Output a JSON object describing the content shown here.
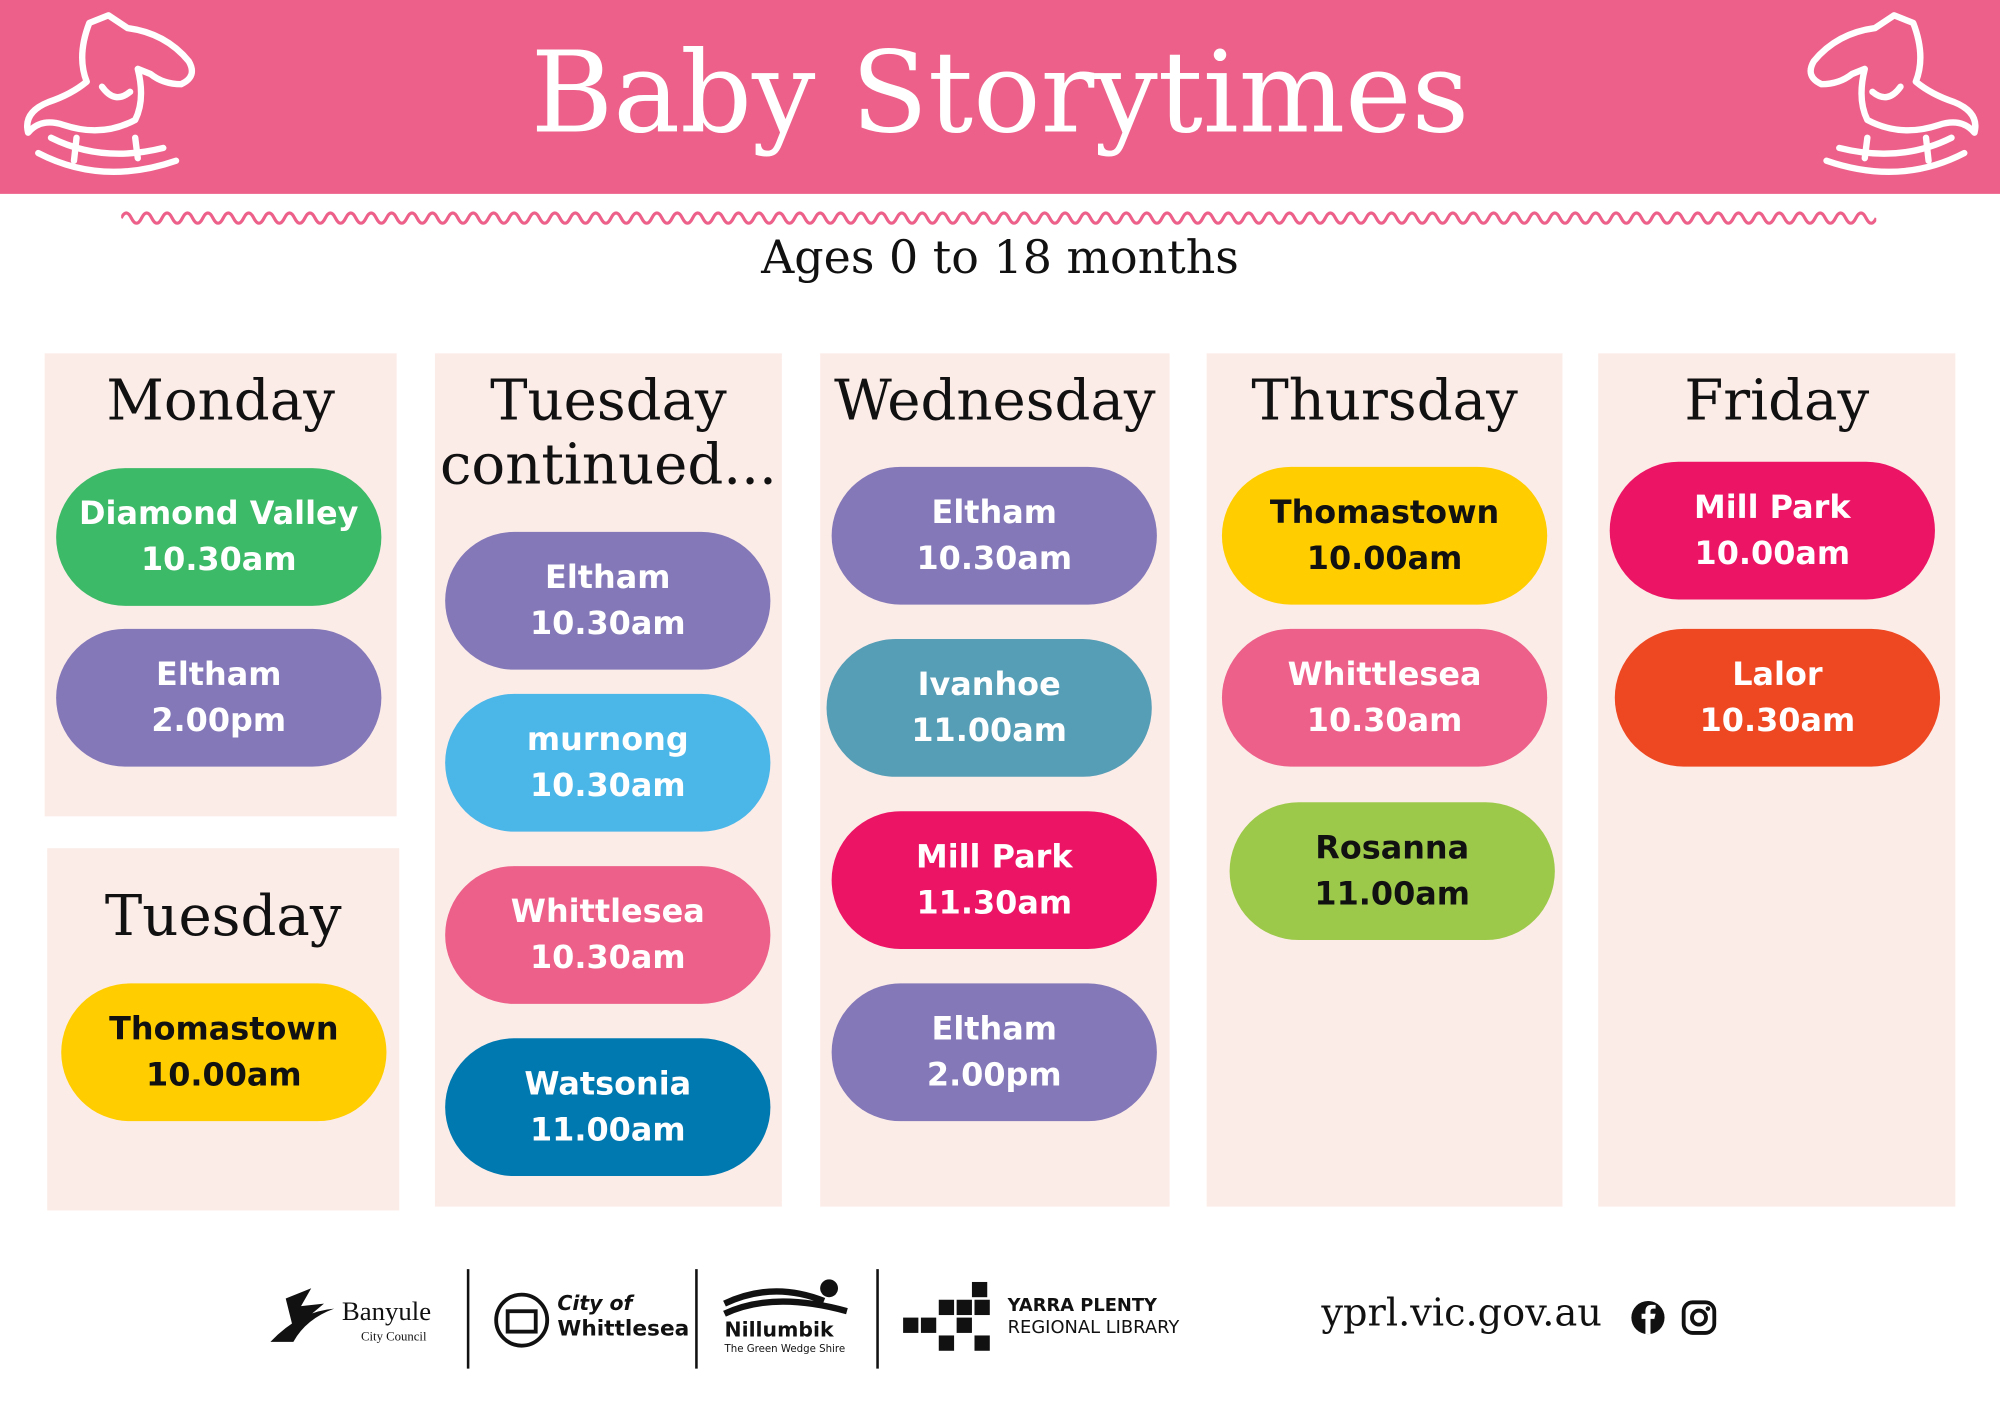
{
  "header": {
    "title": "Baby Storytimes",
    "subtitle": "Ages 0 to 18 months"
  },
  "panels": [
    {
      "title": "Monday",
      "sessions": [
        {
          "location": "Diamond Valley",
          "time": "10.30am",
          "color": "#3dba67",
          "text_color": "#ffffff"
        },
        {
          "location": "Eltham",
          "time": "2.00pm",
          "color": "#8478b8",
          "text_color": "#ffffff"
        }
      ]
    },
    {
      "title": "Tuesday",
      "sessions": [
        {
          "location": "Thomastown",
          "time": "10.00am",
          "color": "#ffcd00",
          "text_color": "#111111"
        }
      ]
    },
    {
      "title": "Tuesday continued...",
      "sessions": [
        {
          "location": "Eltham",
          "time": "10.30am",
          "color": "#8478b8",
          "text_color": "#ffffff"
        },
        {
          "location": "murnong",
          "time": "10.30am",
          "color": "#4bb6e8",
          "text_color": "#ffffff"
        },
        {
          "location": "Whittlesea",
          "time": "10.30am",
          "color": "#ec6089",
          "text_color": "#ffffff"
        },
        {
          "location": "Watsonia",
          "time": "11.00am",
          "color": "#0079b0",
          "text_color": "#ffffff"
        }
      ]
    },
    {
      "title": "Wednesday",
      "sessions": [
        {
          "location": "Eltham",
          "time": "10.30am",
          "color": "#8478b8",
          "text_color": "#ffffff"
        },
        {
          "location": "Ivanhoe",
          "time": "11.00am",
          "color": "#569db6",
          "text_color": "#ffffff"
        },
        {
          "location": "Mill Park",
          "time": "11.30am",
          "color": "#ec1565",
          "text_color": "#ffffff"
        },
        {
          "location": "Eltham",
          "time": "2.00pm",
          "color": "#8478b8",
          "text_color": "#ffffff"
        }
      ]
    },
    {
      "title": "Thursday",
      "sessions": [
        {
          "location": "Thomastown",
          "time": "10.00am",
          "color": "#ffcd00",
          "text_color": "#111111"
        },
        {
          "location": "Whittlesea",
          "time": "10.30am",
          "color": "#ec6089",
          "text_color": "#ffffff"
        },
        {
          "location": "Rosanna",
          "time": "11.00am",
          "color": "#9dc94a",
          "text_color": "#111111"
        }
      ]
    },
    {
      "title": "Friday",
      "sessions": [
        {
          "location": "Mill Park",
          "time": "10.00am",
          "color": "#ec1565",
          "text_color": "#ffffff"
        },
        {
          "location": "Lalor",
          "time": "10.30am",
          "color": "#ee4823",
          "text_color": "#ffffff"
        }
      ]
    }
  ],
  "footer": {
    "banyule": "Banyule",
    "banyule_sub": "City Council",
    "whittlesea_top": "City of",
    "whittlesea": "Whittlesea",
    "nillumbik": "Nillumbik",
    "nillumbik_sub": "The Green Wedge Shire",
    "yprl_top": "YARRA PLENTY",
    "yprl_sub": "REGIONAL LIBRARY",
    "website": "yprl.vic.gov.au"
  }
}
